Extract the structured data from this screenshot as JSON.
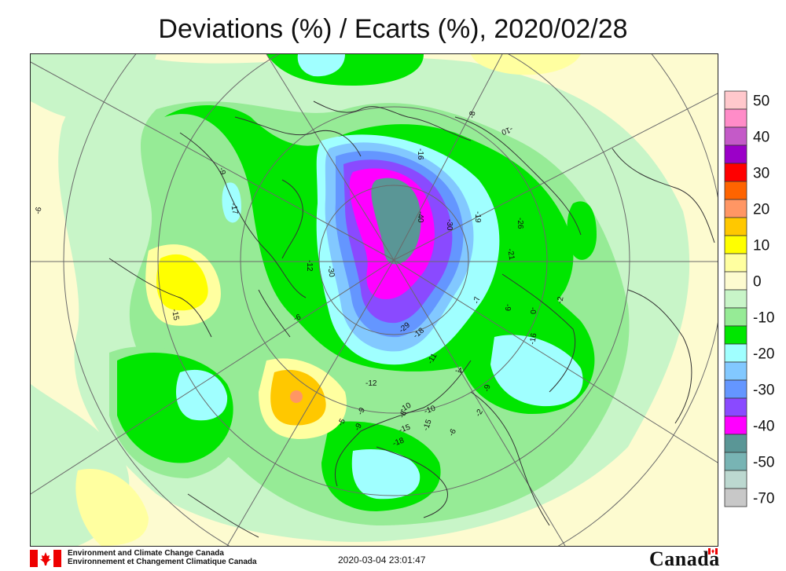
{
  "title": "Deviations (%) / Ecarts (%), 2020/02/28",
  "legend": {
    "levels": [
      {
        "label": "50",
        "color": "#ffc8cc"
      },
      {
        "label": "",
        "color": "#ff8cc8"
      },
      {
        "label": "40",
        "color": "#c45ac8"
      },
      {
        "label": "",
        "color": "#9b00c8"
      },
      {
        "label": "30",
        "color": "#ff0000"
      },
      {
        "label": "",
        "color": "#ff6400"
      },
      {
        "label": "20",
        "color": "#ff9664"
      },
      {
        "label": "",
        "color": "#ffc800"
      },
      {
        "label": "10",
        "color": "#ffff00"
      },
      {
        "label": "",
        "color": "#ffffa0"
      },
      {
        "label": "0",
        "color": "#fdfbd0"
      },
      {
        "label": "",
        "color": "#c8f5c8"
      },
      {
        "label": "-10",
        "color": "#96eb96"
      },
      {
        "label": "",
        "color": "#00e600"
      },
      {
        "label": "-20",
        "color": "#a0ffff"
      },
      {
        "label": "",
        "color": "#82c8ff"
      },
      {
        "label": "-30",
        "color": "#6496ff"
      },
      {
        "label": "",
        "color": "#8a4aff"
      },
      {
        "label": "-40",
        "color": "#ff00ff"
      },
      {
        "label": "",
        "color": "#5a9696"
      },
      {
        "label": "-50",
        "color": "#78b4b4"
      },
      {
        "label": "",
        "color": "#bcd8d0"
      },
      {
        "label": "-70",
        "color": "#c8c8c8"
      }
    ]
  },
  "station_labels": [
    {
      "text": "-6",
      "lon": 0,
      "lat": 0
    },
    {
      "text": "-9",
      "lon": 0,
      "lat": 0
    },
    {
      "text": "-17",
      "lon": 0,
      "lat": 0
    },
    {
      "text": "-8",
      "lon": 0,
      "lat": 0
    },
    {
      "text": "-10",
      "lon": 0,
      "lat": 0
    },
    {
      "text": "-19",
      "lon": 0,
      "lat": 0
    },
    {
      "text": "-30",
      "lon": 0,
      "lat": 0
    },
    {
      "text": "-40",
      "lon": 0,
      "lat": 0
    },
    {
      "text": "-16",
      "lon": 0,
      "lat": 0
    },
    {
      "text": "-26",
      "lon": 0,
      "lat": 0
    },
    {
      "text": "-21",
      "lon": 0,
      "lat": 0
    },
    {
      "text": "-7",
      "lon": 0,
      "lat": 0
    },
    {
      "text": "-9",
      "lon": 0,
      "lat": 0
    },
    {
      "text": "-0",
      "lon": 0,
      "lat": 0
    },
    {
      "text": "-2",
      "lon": 0,
      "lat": 0
    },
    {
      "text": "-15",
      "lon": 0,
      "lat": 0
    },
    {
      "text": "-16",
      "lon": 0,
      "lat": 0
    },
    {
      "text": "-12",
      "lon": 0,
      "lat": 0
    },
    {
      "text": "-30",
      "lon": 0,
      "lat": 0
    },
    {
      "text": "-6",
      "lon": 0,
      "lat": 0
    },
    {
      "text": "-29",
      "lon": 0,
      "lat": 0
    },
    {
      "text": "-18",
      "lon": 0,
      "lat": 0
    },
    {
      "text": "-11",
      "lon": 0,
      "lat": 0
    },
    {
      "text": "-4",
      "lon": 0,
      "lat": 0
    },
    {
      "text": "-9",
      "lon": 0,
      "lat": 0
    },
    {
      "text": "-12",
      "lon": 0,
      "lat": 0
    },
    {
      "text": "-9",
      "lon": 0,
      "lat": 0
    },
    {
      "text": "-10",
      "lon": 0,
      "lat": 0
    },
    {
      "text": "-8",
      "lon": 0,
      "lat": 0
    },
    {
      "text": "-10",
      "lon": 0,
      "lat": 0
    },
    {
      "text": "-6",
      "lon": 0,
      "lat": 0
    },
    {
      "text": "-2",
      "lon": 0,
      "lat": 0
    },
    {
      "text": "-5",
      "lon": 0,
      "lat": 0
    },
    {
      "text": "-9",
      "lon": 0,
      "lat": 0
    },
    {
      "text": "-15",
      "lon": 0,
      "lat": 0
    },
    {
      "text": "-18",
      "lon": 0,
      "lat": 0
    },
    {
      "text": "-15",
      "lon": 0,
      "lat": 0
    }
  ],
  "footer": {
    "org_line1": "Environment and Climate Change Canada",
    "org_line2": "Environnement et Changement Climatique Canada",
    "timestamp": "2020-03-04 23:01:47",
    "wordmark": "Canada"
  }
}
